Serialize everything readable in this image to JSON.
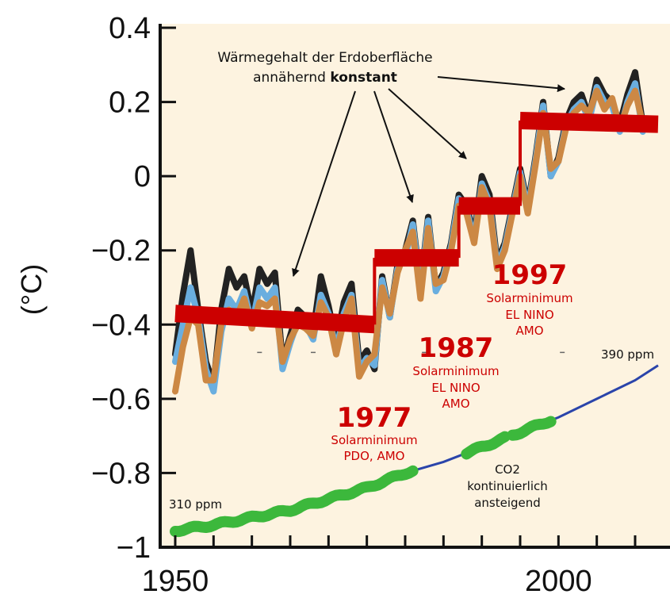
{
  "chart_data": {
    "type": "line",
    "ylabel": "(°C)",
    "xlim": [
      1949,
      2013
    ],
    "ylim": [
      -1,
      0.4
    ],
    "x_ticks": [
      1950,
      1955,
      1960,
      1965,
      1970,
      1975,
      1980,
      1985,
      1990,
      1995,
      2000,
      2005,
      2010
    ],
    "x_tick_labels": [
      {
        "x": 1950,
        "label": "1950"
      },
      {
        "x": 2000,
        "label": "2000"
      }
    ],
    "y_ticks": [
      {
        "value": 0.4,
        "label": "0.4"
      },
      {
        "value": 0.2,
        "label": "0.2"
      },
      {
        "value": 0,
        "label": "0"
      },
      {
        "value": -0.2,
        "label": "−0.2"
      },
      {
        "value": -0.4,
        "label": "−0.4"
      },
      {
        "value": -0.6,
        "label": "−0.6"
      },
      {
        "value": -0.8,
        "label": "−0.8"
      },
      {
        "value": -1,
        "label": "−1"
      }
    ],
    "x": [
      1950,
      1951,
      1952,
      1953,
      1954,
      1955,
      1956,
      1957,
      1958,
      1959,
      1960,
      1961,
      1962,
      1963,
      1964,
      1965,
      1966,
      1967,
      1968,
      1969,
      1970,
      1971,
      1972,
      1973,
      1974,
      1975,
      1976,
      1977,
      1978,
      1979,
      1980,
      1981,
      1982,
      1983,
      1984,
      1985,
      1986,
      1987,
      1988,
      1989,
      1990,
      1991,
      1992,
      1993,
      1994,
      1995,
      1996,
      1997,
      1998,
      1999,
      2000,
      2001,
      2002,
      2003,
      2004,
      2005,
      2006,
      2007,
      2008,
      2009,
      2010,
      2011
    ],
    "series": [
      {
        "color": "#222222",
        "width": 8,
        "values": [
          -0.48,
          -0.32,
          -0.2,
          -0.36,
          -0.5,
          -0.56,
          -0.36,
          -0.25,
          -0.3,
          -0.27,
          -0.37,
          -0.25,
          -0.29,
          -0.26,
          -0.5,
          -0.43,
          -0.36,
          -0.38,
          -0.42,
          -0.27,
          -0.35,
          -0.45,
          -0.34,
          -0.29,
          -0.5,
          -0.47,
          -0.52,
          -0.27,
          -0.38,
          -0.24,
          -0.2,
          -0.12,
          -0.3,
          -0.11,
          -0.3,
          -0.26,
          -0.18,
          -0.05,
          -0.08,
          -0.16,
          0.0,
          -0.05,
          -0.23,
          -0.18,
          -0.08,
          0.02,
          -0.08,
          0.05,
          0.2,
          0.0,
          0.05,
          0.15,
          0.2,
          0.22,
          0.16,
          0.26,
          0.22,
          0.2,
          0.14,
          0.22,
          0.28,
          0.14
        ]
      },
      {
        "color": "#6aaedf",
        "width": 8,
        "values": [
          -0.5,
          -0.4,
          -0.3,
          -0.38,
          -0.52,
          -0.58,
          -0.42,
          -0.33,
          -0.36,
          -0.31,
          -0.4,
          -0.3,
          -0.33,
          -0.3,
          -0.52,
          -0.45,
          -0.39,
          -0.4,
          -0.44,
          -0.32,
          -0.37,
          -0.47,
          -0.37,
          -0.32,
          -0.52,
          -0.49,
          -0.51,
          -0.28,
          -0.38,
          -0.25,
          -0.22,
          -0.13,
          -0.31,
          -0.12,
          -0.31,
          -0.27,
          -0.19,
          -0.06,
          -0.09,
          -0.17,
          -0.02,
          -0.07,
          -0.24,
          -0.19,
          -0.09,
          0.01,
          -0.09,
          0.04,
          0.19,
          0.0,
          0.04,
          0.14,
          0.18,
          0.2,
          0.15,
          0.24,
          0.2,
          0.19,
          0.12,
          0.2,
          0.25,
          0.12
        ]
      },
      {
        "color": "#cc8844",
        "width": 8,
        "values": [
          -0.58,
          -0.46,
          -0.38,
          -0.4,
          -0.55,
          -0.55,
          -0.4,
          -0.36,
          -0.38,
          -0.33,
          -0.41,
          -0.34,
          -0.35,
          -0.33,
          -0.5,
          -0.44,
          -0.4,
          -0.41,
          -0.43,
          -0.34,
          -0.38,
          -0.48,
          -0.39,
          -0.33,
          -0.54,
          -0.5,
          -0.48,
          -0.3,
          -0.37,
          -0.26,
          -0.2,
          -0.15,
          -0.33,
          -0.14,
          -0.29,
          -0.28,
          -0.2,
          -0.08,
          -0.1,
          -0.18,
          -0.03,
          -0.08,
          -0.25,
          -0.2,
          -0.1,
          0.0,
          -0.1,
          0.03,
          0.17,
          0.02,
          0.04,
          0.13,
          0.17,
          0.19,
          0.17,
          0.23,
          0.18,
          0.21,
          0.13,
          0.19,
          0.23,
          0.14
        ]
      }
    ],
    "step_series": {
      "color": "#cc0000",
      "segments": [
        {
          "x0": 1950,
          "x1": 1976,
          "y0": -0.37,
          "y1": -0.4
        },
        {
          "x0": 1976,
          "x1": 1987,
          "y0": -0.22,
          "y1": -0.22
        },
        {
          "x0": 1987,
          "x1": 1995,
          "y0": -0.08,
          "y1": -0.08
        },
        {
          "x0": 1995,
          "x1": 2013,
          "y0": 0.15,
          "y1": 0.14
        }
      ]
    },
    "co2_series": {
      "color": "#2a44aa",
      "x": [
        1950,
        1955,
        1960,
        1965,
        1970,
        1975,
        1980,
        1985,
        1990,
        1995,
        2000,
        2005,
        2010,
        2013
      ],
      "values": [
        -0.955,
        -0.94,
        -0.92,
        -0.9,
        -0.87,
        -0.84,
        -0.8,
        -0.77,
        -0.73,
        -0.69,
        -0.65,
        -0.6,
        -0.55,
        -0.51
      ]
    },
    "co2_highlight": {
      "color": "#3cb83c",
      "segments": [
        [
          1950,
          1981
        ],
        [
          1988,
          1993
        ],
        [
          1994,
          1999
        ]
      ]
    },
    "background_color": "#fdf3e0",
    "annotations": {
      "heat_line1": "Wärmegehalt der Erdoberfläche",
      "heat_line2_normal": "annähernd ",
      "heat_line2_bold": "konstant",
      "p1977_year": "1977",
      "p1977_line1": "Solarminimum",
      "p1977_line2": "PDO, AMO",
      "p1987_year": "1987",
      "p1987_line1": "Solarminimum",
      "p1987_line2": "EL NINO",
      "p1987_line3": "AMO",
      "p1997_year": "1997",
      "p1997_line1": "Solarminimum",
      "p1997_line2": "EL NINO",
      "p1997_line3": "AMO",
      "co2_line1": "CO2",
      "co2_line2": "kontinuierlich",
      "co2_line3": "ansteigend",
      "ppm_start": "310 ppm",
      "ppm_end": "390 ppm"
    },
    "period_color": "#cc0000"
  }
}
